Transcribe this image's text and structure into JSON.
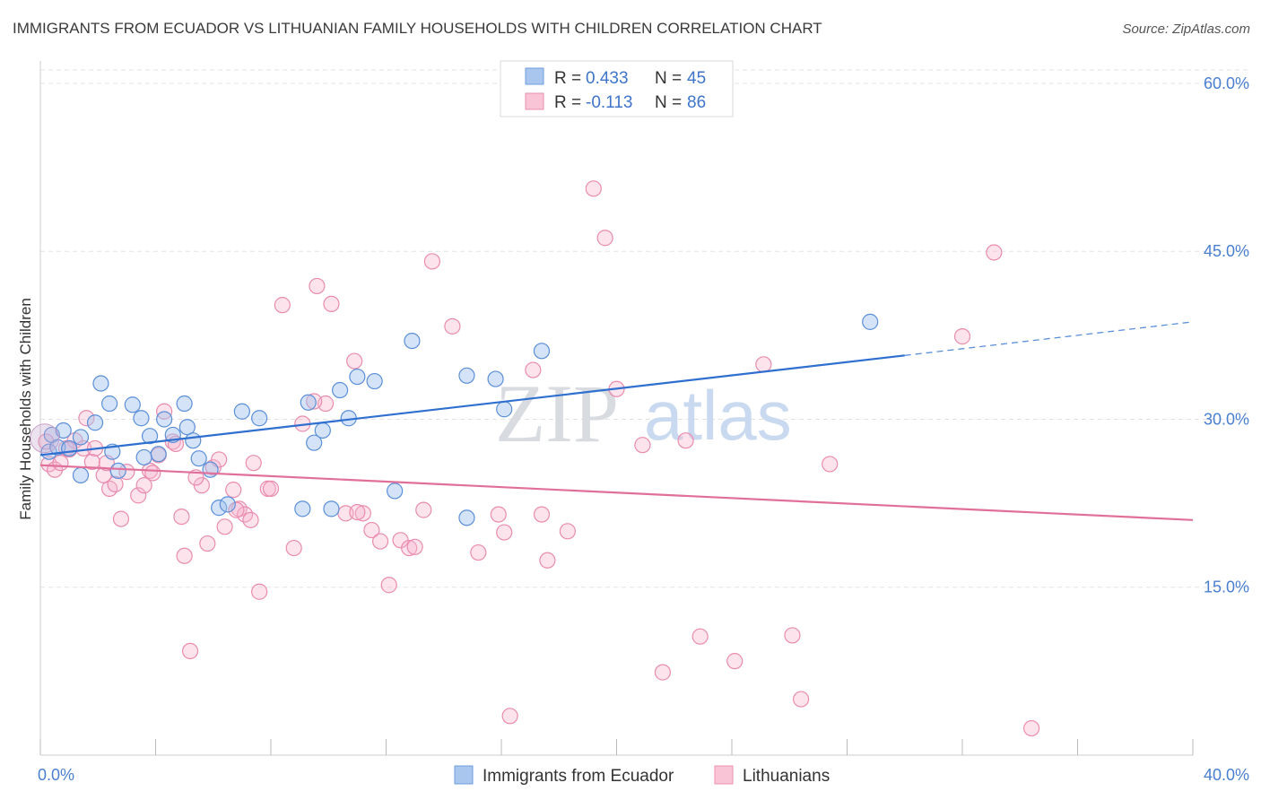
{
  "title": "IMMIGRANTS FROM ECUADOR VS LITHUANIAN FAMILY HOUSEHOLDS WITH CHILDREN CORRELATION CHART",
  "source": "Source: ZipAtlas.com",
  "watermark": {
    "zip": "ZIP",
    "atlas": "atlas"
  },
  "legend": {
    "rows": [
      {
        "r_label": "R = ",
        "r_value": "0.433",
        "n_label": "N = ",
        "n_value": "45"
      },
      {
        "r_label": "R = ",
        "r_value": "-0.113",
        "n_label": "N = ",
        "n_value": "86"
      }
    ]
  },
  "bottom_legend": [
    "Immigrants from Ecuador",
    "Lithuanians"
  ],
  "colors": {
    "blue": "#3a75d0",
    "blue_fill": "#a9c6ee",
    "pink": "#e2709a",
    "pink_fill": "#f5b9cd",
    "grid": "#e3e3e3",
    "tick_text": "#4a7fd0"
  },
  "chart_data": {
    "type": "scatter",
    "xlabel": "",
    "ylabel": "Family Households with Children",
    "xlim": [
      0,
      40
    ],
    "ylim": [
      0,
      62
    ],
    "x_tick_labels": [
      {
        "value": 0,
        "label": "0.0%"
      },
      {
        "value": 40,
        "label": "40.0%"
      }
    ],
    "y_tick_labels": [
      {
        "value": 15,
        "label": "15.0%"
      },
      {
        "value": 30,
        "label": "30.0%"
      },
      {
        "value": 45,
        "label": "45.0%"
      },
      {
        "value": 60,
        "label": "60.0%"
      }
    ],
    "series": [
      {
        "name": "Immigrants from Ecuador",
        "color": "#3a75d0",
        "r": 0.433,
        "n": 45,
        "trend": {
          "x0": 0,
          "y0": 26.8,
          "x1": 30,
          "y1": 35.7,
          "dash_to_x": 40,
          "dash_to_y": 38.7
        },
        "points": [
          [
            0.3,
            27.1
          ],
          [
            0.4,
            28.6
          ],
          [
            0.6,
            27.5
          ],
          [
            0.8,
            29.0
          ],
          [
            1.0,
            27.4
          ],
          [
            1.4,
            28.4
          ],
          [
            1.4,
            25.0
          ],
          [
            1.9,
            29.7
          ],
          [
            2.1,
            33.2
          ],
          [
            2.4,
            31.4
          ],
          [
            2.5,
            27.1
          ],
          [
            2.7,
            25.4
          ],
          [
            3.2,
            31.3
          ],
          [
            3.5,
            30.1
          ],
          [
            3.8,
            28.5
          ],
          [
            4.1,
            26.9
          ],
          [
            4.3,
            30.0
          ],
          [
            4.6,
            28.6
          ],
          [
            5.0,
            31.4
          ],
          [
            5.1,
            29.3
          ],
          [
            5.3,
            28.1
          ],
          [
            5.5,
            26.5
          ],
          [
            5.9,
            25.5
          ],
          [
            6.2,
            22.1
          ],
          [
            6.5,
            22.4
          ],
          [
            7.0,
            30.7
          ],
          [
            7.6,
            30.1
          ],
          [
            9.1,
            22.0
          ],
          [
            9.5,
            27.9
          ],
          [
            9.8,
            29.0
          ],
          [
            10.4,
            32.6
          ],
          [
            10.7,
            30.1
          ],
          [
            11.0,
            33.8
          ],
          [
            11.6,
            33.4
          ],
          [
            12.3,
            23.6
          ],
          [
            12.9,
            37.0
          ],
          [
            14.8,
            21.2
          ],
          [
            14.8,
            33.9
          ],
          [
            15.8,
            33.6
          ],
          [
            16.1,
            30.9
          ],
          [
            17.4,
            36.1
          ],
          [
            28.8,
            38.7
          ],
          [
            10.1,
            22.0
          ],
          [
            3.6,
            26.6
          ],
          [
            9.3,
            31.5
          ]
        ]
      },
      {
        "name": "Lithuanians",
        "color": "#e2709a",
        "r": -0.113,
        "n": 86,
        "trend": {
          "x0": 0,
          "y0": 25.9,
          "x1": 40,
          "y1": 21.0
        },
        "points": [
          [
            0.2,
            28.0
          ],
          [
            0.3,
            26.0
          ],
          [
            0.5,
            25.5
          ],
          [
            0.7,
            26.1
          ],
          [
            0.9,
            27.4
          ],
          [
            1.2,
            28.1
          ],
          [
            1.5,
            27.4
          ],
          [
            1.6,
            30.1
          ],
          [
            1.8,
            26.2
          ],
          [
            1.9,
            27.4
          ],
          [
            2.2,
            25.0
          ],
          [
            2.4,
            23.8
          ],
          [
            2.6,
            24.2
          ],
          [
            2.8,
            21.1
          ],
          [
            3.0,
            25.3
          ],
          [
            3.4,
            23.2
          ],
          [
            3.6,
            24.1
          ],
          [
            3.8,
            25.4
          ],
          [
            4.1,
            26.8
          ],
          [
            4.3,
            30.7
          ],
          [
            4.6,
            28.0
          ],
          [
            4.9,
            21.3
          ],
          [
            5.0,
            17.8
          ],
          [
            5.2,
            9.3
          ],
          [
            5.6,
            24.1
          ],
          [
            5.8,
            18.9
          ],
          [
            6.0,
            25.7
          ],
          [
            6.2,
            26.4
          ],
          [
            6.4,
            20.4
          ],
          [
            6.7,
            23.7
          ],
          [
            6.9,
            22.0
          ],
          [
            7.1,
            21.5
          ],
          [
            7.3,
            21.0
          ],
          [
            7.4,
            26.1
          ],
          [
            7.6,
            14.6
          ],
          [
            7.9,
            23.8
          ],
          [
            8.4,
            40.2
          ],
          [
            8.8,
            18.5
          ],
          [
            9.1,
            29.6
          ],
          [
            9.6,
            41.9
          ],
          [
            9.9,
            31.4
          ],
          [
            10.1,
            40.3
          ],
          [
            10.6,
            21.6
          ],
          [
            10.9,
            35.2
          ],
          [
            11.2,
            21.6
          ],
          [
            11.5,
            20.1
          ],
          [
            11.8,
            19.1
          ],
          [
            12.1,
            15.2
          ],
          [
            12.5,
            19.2
          ],
          [
            12.8,
            18.5
          ],
          [
            13.3,
            21.9
          ],
          [
            13.6,
            44.1
          ],
          [
            14.3,
            38.3
          ],
          [
            15.2,
            18.1
          ],
          [
            15.9,
            21.5
          ],
          [
            16.1,
            19.9
          ],
          [
            17.1,
            34.4
          ],
          [
            17.6,
            17.4
          ],
          [
            18.3,
            20.0
          ],
          [
            19.2,
            50.6
          ],
          [
            19.6,
            46.2
          ],
          [
            20.0,
            32.7
          ],
          [
            20.9,
            27.7
          ],
          [
            21.6,
            7.4
          ],
          [
            22.4,
            28.1
          ],
          [
            22.9,
            10.6
          ],
          [
            24.1,
            8.4
          ],
          [
            25.1,
            34.9
          ],
          [
            26.1,
            10.7
          ],
          [
            26.4,
            5.0
          ],
          [
            27.4,
            26.0
          ],
          [
            32.0,
            37.4
          ],
          [
            33.1,
            44.9
          ],
          [
            34.4,
            2.4
          ],
          [
            16.3,
            3.5
          ],
          [
            3.9,
            25.2
          ],
          [
            1.0,
            27.3
          ],
          [
            2.3,
            26.1
          ],
          [
            4.7,
            27.8
          ],
          [
            6.8,
            21.9
          ],
          [
            9.5,
            31.6
          ],
          [
            11.0,
            21.7
          ],
          [
            13.0,
            18.6
          ],
          [
            17.4,
            21.5
          ],
          [
            8.0,
            23.8
          ],
          [
            5.4,
            24.8
          ]
        ]
      }
    ]
  }
}
